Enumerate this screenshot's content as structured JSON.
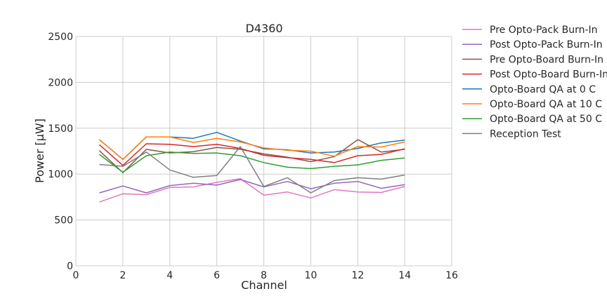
{
  "chart_data": {
    "type": "line",
    "title": "D4360",
    "xlabel": "Channel",
    "ylabel": "Power [μW]",
    "xlim": [
      0,
      16
    ],
    "ylim": [
      0,
      2500
    ],
    "xticks": [
      0,
      2,
      4,
      6,
      8,
      10,
      12,
      14,
      16
    ],
    "yticks": [
      0,
      500,
      1000,
      1500,
      2000,
      2500
    ],
    "grid": true,
    "legend_placement": "outside-right-top",
    "x": [
      1,
      2,
      3,
      4,
      5,
      6,
      7,
      8,
      9,
      10,
      11,
      12,
      13,
      14
    ],
    "series": [
      {
        "name": "Pre Opto-Pack Burn-In",
        "color": "#e377c2",
        "values": [
          695,
          785,
          775,
          855,
          860,
          910,
          950,
          770,
          805,
          740,
          830,
          805,
          800,
          865
        ]
      },
      {
        "name": "Post Opto-Pack Burn-In",
        "color": "#9467bd",
        "values": [
          795,
          870,
          795,
          875,
          900,
          880,
          940,
          860,
          920,
          840,
          900,
          920,
          845,
          885
        ]
      },
      {
        "name": "Pre Opto-Board Burn-In",
        "color": "#8c564b",
        "values": [
          1255,
          1015,
          1270,
          1230,
          1245,
          1290,
          1270,
          1220,
          1185,
          1135,
          1190,
          1375,
          1240,
          1270
        ]
      },
      {
        "name": "Post Opto-Board Burn-In",
        "color": "#d62728",
        "values": [
          1320,
          1095,
          1330,
          1325,
          1300,
          1325,
          1280,
          1205,
          1180,
          1160,
          1125,
          1200,
          1215,
          1275
        ]
      },
      {
        "name": "Opto-Board QA at 0 C",
        "color": "#1f77b4",
        "values": [
          1375,
          1160,
          1405,
          1405,
          1390,
          1455,
          1360,
          1275,
          1265,
          1230,
          1240,
          1280,
          1340,
          1370
        ]
      },
      {
        "name": "Opto-Board QA at 10 C",
        "color": "#ff7f0e",
        "values": [
          1375,
          1160,
          1405,
          1405,
          1345,
          1390,
          1350,
          1285,
          1260,
          1250,
          1195,
          1300,
          1295,
          1350
        ]
      },
      {
        "name": "Opto-Board QA at 50 C",
        "color": "#2ca02c",
        "values": [
          1215,
          1020,
          1200,
          1240,
          1225,
          1230,
          1200,
          1125,
          1075,
          1060,
          1085,
          1100,
          1150,
          1175
        ]
      },
      {
        "name": "Reception Test",
        "color": "#7f7f7f",
        "values": [
          1105,
          1085,
          1240,
          1045,
          965,
          985,
          1300,
          865,
          960,
          795,
          930,
          960,
          945,
          990
        ]
      }
    ]
  }
}
